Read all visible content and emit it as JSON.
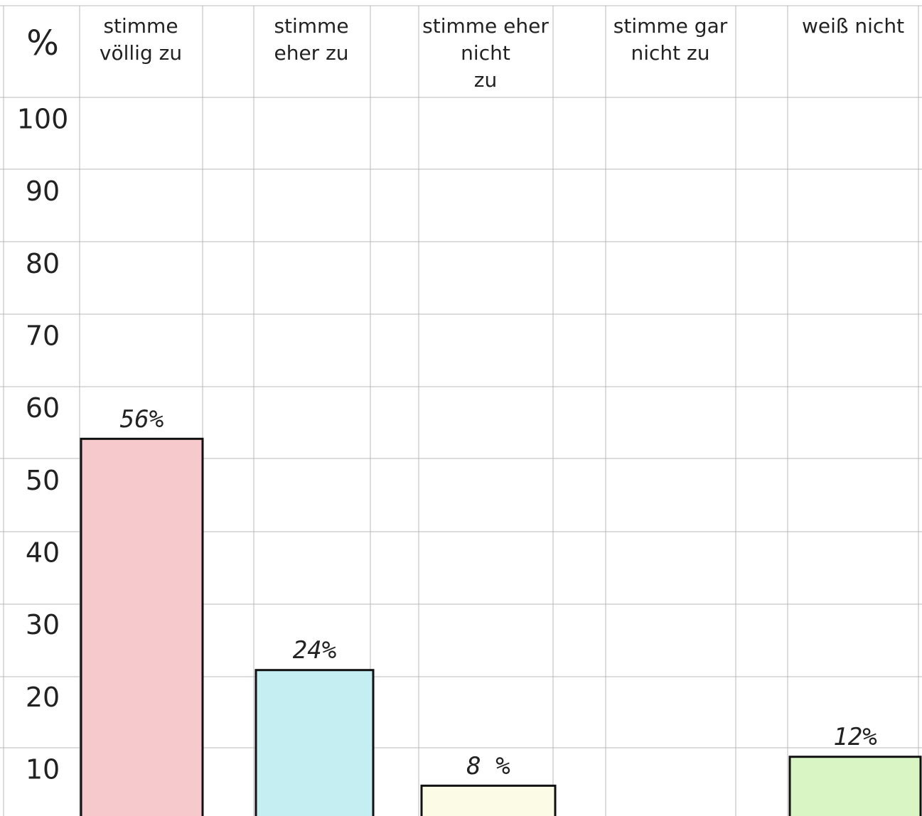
{
  "chart_data": {
    "type": "bar",
    "y_label": "%",
    "categories": [
      "stimme völlig zu",
      "stimme eher zu",
      "stimme eher nicht zu",
      "stimme gar nicht zu",
      "weiß nicht"
    ],
    "values": [
      56,
      24,
      8,
      null,
      12
    ],
    "value_labels": [
      "56%",
      "24%",
      "8 %",
      null,
      "12%"
    ],
    "colors": [
      "#f6c9cc",
      "#c4eef2",
      "#fbfbe6",
      null,
      "#d9f5c4"
    ],
    "ylim": [
      0,
      100
    ],
    "yticks": [
      10,
      20,
      30,
      40,
      50,
      60,
      70,
      80,
      90,
      100
    ]
  }
}
